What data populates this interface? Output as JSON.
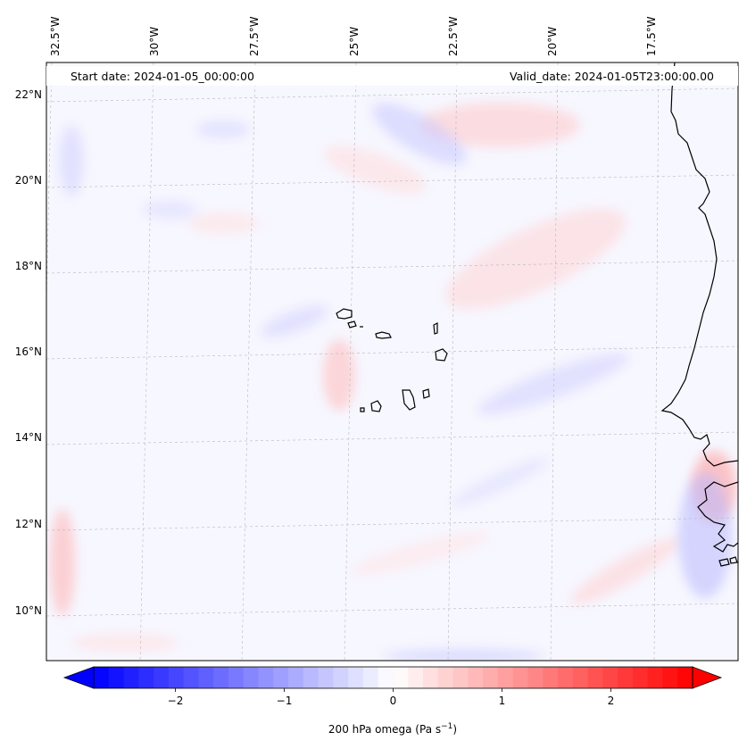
{
  "map": {
    "header": {
      "start_date": "Start date: 2024-01-05_00:00:00",
      "valid_date": "Valid_date: 2024-01-05T23:00:00.00"
    },
    "lon_labels": [
      "32.5°W",
      "30°W",
      "27.5°W",
      "25°W",
      "22.5°W",
      "20°W",
      "17.5°W"
    ],
    "lat_labels": [
      "22°N",
      "20°N",
      "18°N",
      "16°N",
      "14°N",
      "12°N",
      "10°N"
    ],
    "colorbar": {
      "ticks": [
        "−2",
        "−1",
        "0",
        "1",
        "2"
      ],
      "tick_values": [
        -2,
        -1,
        0,
        1,
        2
      ],
      "range": [
        -2.75,
        2.75
      ],
      "extend": "both",
      "label_prefix": "200 hPa omega (Pa s",
      "label_sup": "−1",
      "label_suffix": ")",
      "colors": {
        "negative": "#0000ff",
        "zero": "#ffffff",
        "positive": "#ff0000"
      }
    },
    "field_description": "weak vertical velocity field, mostly near zero with faint red/blue streaks",
    "colors": {
      "coastline": "#000000",
      "gridline": "#b0b0b0",
      "background": "#f7f7ff"
    }
  }
}
